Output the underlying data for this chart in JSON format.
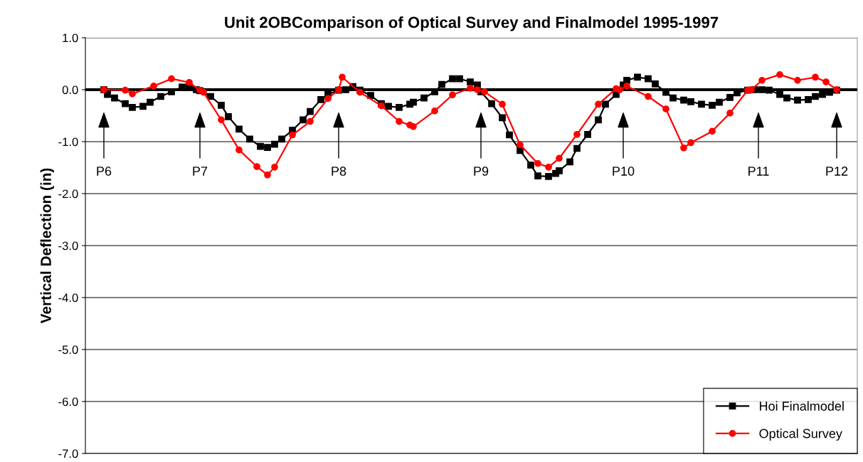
{
  "chart_data": {
    "type": "line",
    "title": "Unit 2OBComparison of Optical Survey and Finalmodel 1995-1997",
    "ylabel": "Vertical Deflection (in)",
    "ylim": [
      -7.0,
      1.0
    ],
    "yticks": [
      {
        "value": -7,
        "label": "-7.0"
      },
      {
        "value": -6,
        "label": "-6.0"
      },
      {
        "value": -5,
        "label": "-5.0"
      },
      {
        "value": -4,
        "label": "-4.0"
      },
      {
        "value": -3,
        "label": "-3.0"
      },
      {
        "value": -2,
        "label": "-2.0"
      },
      {
        "value": -1,
        "label": "-1.0"
      },
      {
        "value": 0,
        "label": "0.0"
      },
      {
        "value": 1,
        "label": "1.0"
      }
    ],
    "grid": "y",
    "legend": "bottom right",
    "ref_lines": [
      {
        "axis": "y",
        "value": 0,
        "color": "#000000"
      }
    ],
    "categories": [
      "P6",
      null,
      null,
      null,
      null,
      null,
      null,
      null,
      null,
      null,
      null,
      null,
      null,
      null,
      null,
      null,
      null,
      null,
      null,
      null,
      null,
      null,
      null,
      null,
      null,
      null,
      null,
      "P7",
      null,
      null,
      null,
      null,
      null,
      null,
      null,
      null,
      null,
      null,
      null,
      null,
      null,
      null,
      null,
      null,
      null,
      null,
      null,
      null,
      null,
      null,
      null,
      null,
      null,
      null,
      null,
      null,
      null,
      null,
      null,
      null,
      null,
      null,
      null,
      null,
      null,
      null,
      "P8",
      null,
      null,
      null,
      null,
      null,
      null,
      null,
      null,
      null,
      null,
      null,
      null,
      null,
      null,
      null,
      null,
      null,
      null,
      null,
      null,
      null,
      null,
      null,
      null,
      null,
      null,
      null,
      null,
      null,
      null,
      null,
      null,
      null,
      null,
      null,
      null,
      null,
      null,
      null,
      "P9",
      null,
      null,
      null,
      null,
      null,
      null,
      null,
      null,
      null,
      null,
      null,
      null,
      null,
      null,
      null,
      null,
      null,
      null,
      null,
      null,
      null,
      null,
      null,
      null,
      null,
      null,
      null,
      null,
      null,
      null,
      null,
      null,
      null,
      null,
      null,
      null,
      null,
      null,
      null,
      "P10",
      null,
      null,
      null,
      null,
      null,
      null,
      null,
      null,
      null,
      null,
      null,
      null,
      null,
      null,
      null,
      null,
      null,
      null,
      null,
      null,
      null,
      null,
      null,
      null,
      null,
      null,
      null,
      null,
      null,
      null,
      null,
      null,
      null,
      null,
      null,
      null,
      null,
      "P11",
      null,
      null,
      null,
      null,
      null,
      null,
      null,
      null,
      null,
      null,
      null,
      null,
      null,
      null,
      null,
      null,
      null,
      null,
      null,
      null,
      null,
      "P12"
    ],
    "series": [
      {
        "name": "Hoi Finalmodel",
        "color": "#000000",
        "marker": "square",
        "values": [
          0,
          -0.09,
          null,
          -0.16,
          null,
          null,
          -0.27,
          null,
          -0.34,
          null,
          null,
          -0.32,
          null,
          -0.24,
          null,
          null,
          -0.13,
          null,
          null,
          -0.04,
          null,
          null,
          0.05,
          null,
          0.06,
          null,
          0.0,
          -0.02,
          null,
          null,
          -0.13,
          null,
          null,
          -0.3,
          null,
          -0.52,
          null,
          null,
          -0.76,
          null,
          null,
          -0.95,
          null,
          null,
          -1.09,
          null,
          -1.11,
          null,
          -1.05,
          null,
          -0.95,
          null,
          null,
          -0.78,
          null,
          null,
          -0.58,
          null,
          -0.42,
          null,
          null,
          -0.19,
          null,
          -0.09,
          null,
          null,
          -0.01,
          null,
          0.0,
          null,
          0.06,
          null,
          -0.01,
          null,
          null,
          -0.11,
          null,
          null,
          -0.27,
          null,
          -0.32,
          null,
          null,
          -0.34,
          null,
          null,
          -0.28,
          -0.24,
          null,
          null,
          -0.16,
          null,
          null,
          -0.04,
          null,
          0.1,
          null,
          null,
          0.21,
          null,
          0.21,
          null,
          null,
          0.15,
          null,
          0.09,
          -0.04,
          null,
          null,
          -0.27,
          null,
          null,
          -0.54,
          null,
          -0.87,
          null,
          null,
          -1.17,
          null,
          null,
          -1.45,
          null,
          -1.66,
          null,
          null,
          -1.67,
          null,
          -1.61,
          -1.56,
          null,
          null,
          -1.39,
          null,
          -1.13,
          null,
          null,
          -0.86,
          null,
          null,
          -0.58,
          null,
          -0.28,
          null,
          null,
          -0.09,
          null,
          0.09,
          0.18,
          null,
          null,
          0.24,
          null,
          null,
          0.21,
          null,
          0.11,
          null,
          null,
          -0.05,
          null,
          -0.16,
          null,
          null,
          -0.2,
          null,
          -0.23,
          null,
          null,
          -0.28,
          null,
          null,
          -0.3,
          null,
          -0.24,
          null,
          null,
          -0.15,
          null,
          -0.06,
          null,
          null,
          -0.01,
          null,
          0.0,
          null,
          0.0,
          null,
          -0.01,
          null,
          null,
          -0.09,
          null,
          -0.16,
          null,
          null,
          -0.2,
          null,
          null,
          -0.19,
          null,
          -0.13,
          null,
          -0.09,
          null,
          -0.05,
          null,
          -0.01
        ]
      },
      {
        "name": "Optical Survey",
        "color": "#ff0000",
        "marker": "circle",
        "values": [
          0.0,
          null,
          null,
          null,
          null,
          null,
          -0.01,
          null,
          -0.08,
          null,
          null,
          null,
          null,
          null,
          0.07,
          null,
          null,
          null,
          null,
          0.21,
          null,
          null,
          null,
          null,
          0.14,
          null,
          null,
          -0.01,
          -0.05,
          null,
          null,
          null,
          null,
          -0.58,
          null,
          null,
          null,
          null,
          -1.16,
          null,
          null,
          null,
          null,
          -1.48,
          null,
          null,
          -1.64,
          null,
          -1.49,
          null,
          null,
          null,
          null,
          -0.87,
          null,
          null,
          null,
          null,
          -0.61,
          null,
          null,
          null,
          null,
          -0.17,
          null,
          null,
          0.0,
          0.24,
          null,
          null,
          null,
          null,
          -0.05,
          null,
          null,
          null,
          null,
          null,
          -0.31,
          null,
          null,
          null,
          null,
          -0.61,
          null,
          null,
          -0.68,
          -0.71,
          null,
          null,
          null,
          null,
          null,
          -0.41,
          null,
          null,
          null,
          null,
          -0.1,
          null,
          null,
          null,
          null,
          0.03,
          null,
          0.0,
          null,
          -0.04,
          null,
          null,
          null,
          null,
          -0.28,
          null,
          null,
          null,
          null,
          -1.06,
          null,
          null,
          null,
          null,
          -1.42,
          null,
          null,
          -1.49,
          null,
          null,
          -1.32,
          null,
          null,
          null,
          null,
          -0.86,
          null,
          null,
          null,
          null,
          null,
          -0.28,
          null,
          null,
          null,
          null,
          0.02,
          0.0,
          null,
          0.07,
          null,
          null,
          null,
          null,
          null,
          -0.13,
          null,
          null,
          null,
          null,
          -0.37,
          null,
          null,
          null,
          null,
          -1.12,
          null,
          -1.02,
          null,
          null,
          null,
          null,
          null,
          -0.8,
          null,
          null,
          null,
          null,
          -0.45,
          null,
          null,
          null,
          null,
          -0.01,
          0.0,
          null,
          null,
          0.18,
          null,
          null,
          null,
          null,
          0.29,
          null,
          null,
          null,
          null,
          0.18,
          null,
          null,
          null,
          null,
          0.24,
          null,
          null,
          0.15,
          null,
          null,
          0.0
        ]
      }
    ]
  }
}
